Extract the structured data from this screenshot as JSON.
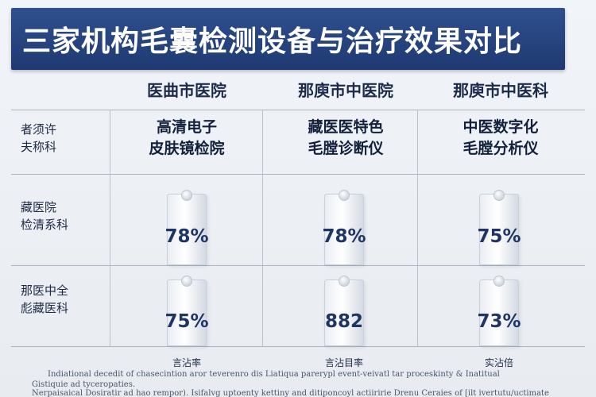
{
  "title": "三家机构毛囊检测设备与治疗效果对比",
  "columns": [
    {
      "name": "医曲市医院"
    },
    {
      "name": "那庾市中医院"
    },
    {
      "name": "那庾市中医科"
    }
  ],
  "rows": [
    {
      "label": [
        "者须许",
        "夫称科"
      ],
      "cells": [
        [
          "高清电子",
          "皮肤镜检院"
        ],
        [
          "藏医医特色",
          "毛膛诊断仪"
        ],
        [
          "中医数字化",
          "毛膛分析仪"
        ]
      ]
    },
    {
      "label": [
        "藏医院",
        "检清系科"
      ],
      "values": [
        "78%",
        "78%",
        "75%"
      ]
    },
    {
      "label": [
        "那医中全",
        "彪藏医科"
      ],
      "values": [
        "75%",
        "882",
        "73%"
      ]
    }
  ],
  "footer_labels": [
    "言沾率",
    "言沾目率",
    "实沾倍"
  ],
  "footnotes": [
    "Indiational decedit of chasecintion aror teverenro dis Liatiqua parerypl event-veivatl tar proceskinty & Inatitual",
    "Gistiquie ad tyceropaties.",
    "Nerpaisaical Dosiratir ad hao rempor). Isifalvg uptoenty kettiny and ditiponcoyl actiiririe Drenu Ceraies of [ilt ivertutu/uctimate"
  ]
}
